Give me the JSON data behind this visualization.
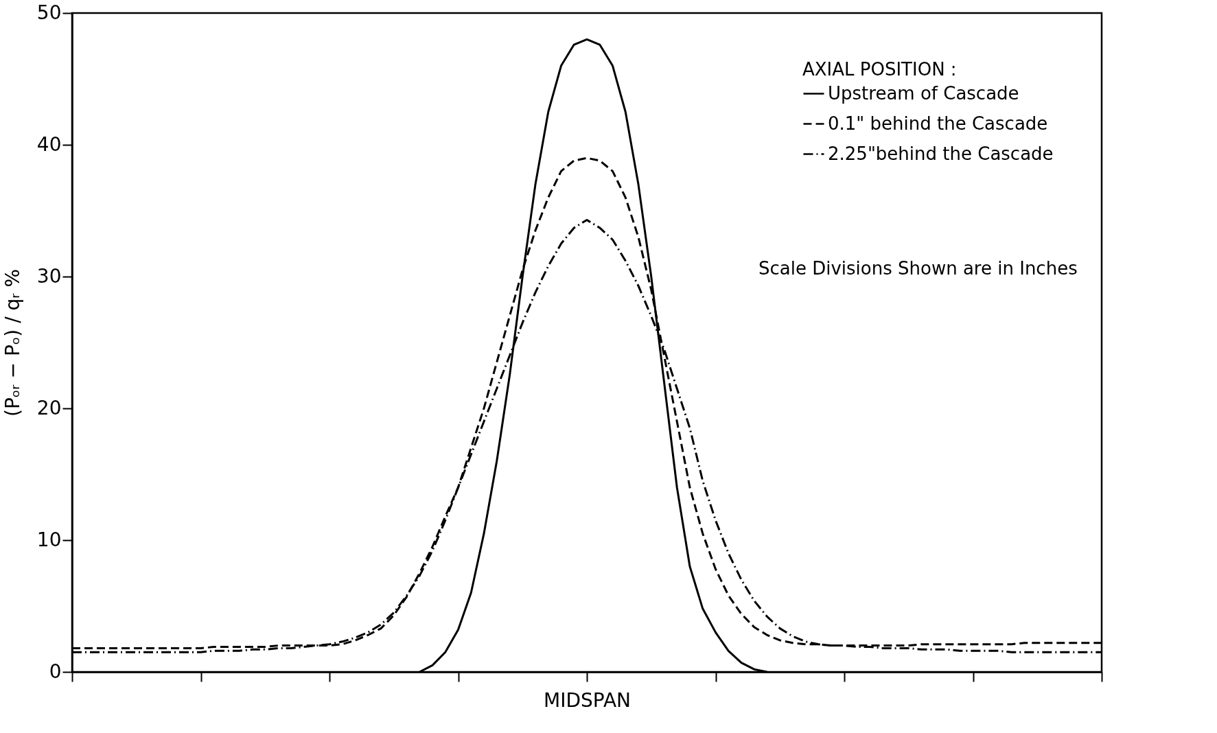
{
  "chart_data": {
    "type": "line",
    "ylabel": "(Pₒᵣ − Pₒ) / qᵣ  %",
    "legend_title": "AXIAL POSITION :",
    "legend": "top right",
    "grid": false,
    "categories": [
      null,
      null,
      null,
      null,
      null,
      null,
      null,
      null,
      null,
      null,
      null,
      null,
      null,
      null,
      null,
      null,
      null,
      null,
      null,
      null,
      null,
      null,
      null,
      null,
      null,
      null,
      null,
      null,
      null,
      null,
      null,
      null,
      null,
      null,
      null,
      null,
      null,
      null,
      null,
      null,
      "MIDSPAN",
      null,
      null,
      null,
      null,
      null,
      null,
      null,
      null,
      null,
      null,
      null,
      null,
      null,
      null,
      null,
      null,
      null,
      null,
      null,
      null,
      null,
      null,
      null,
      null,
      null,
      null,
      null,
      null,
      null,
      null,
      null,
      null,
      null,
      null,
      null,
      null,
      null,
      null,
      null,
      null
    ],
    "ylim": [
      0,
      50
    ],
    "yticks": [
      0,
      10,
      20,
      30,
      40,
      50
    ],
    "annotations": [
      "Scale Divisions Shown are in Inches"
    ],
    "series": [
      {
        "name": "Upstream of Cascade",
        "color": "#000000",
        "line_style": "solid",
        "values": [
          null,
          null,
          null,
          null,
          null,
          null,
          null,
          null,
          null,
          null,
          null,
          null,
          null,
          null,
          null,
          null,
          null,
          null,
          null,
          null,
          null,
          null,
          null,
          null,
          null,
          null,
          null,
          0,
          0.5,
          1.5,
          3.2,
          6,
          10.5,
          16,
          22.5,
          30,
          37,
          42.5,
          46,
          47.6,
          48,
          47.6,
          46,
          42.5,
          37,
          30,
          22,
          14,
          8,
          4.8,
          3,
          1.6,
          0.7,
          0.2,
          0,
          null,
          null,
          null,
          null,
          null,
          null,
          null,
          null,
          null,
          null,
          null,
          null,
          null,
          null,
          null,
          null,
          null,
          null,
          null,
          null,
          null,
          null,
          null,
          null,
          null,
          null
        ]
      },
      {
        "name": "0.1\" behind the Cascade",
        "color": "#000000",
        "line_style": "dashed",
        "values": [
          1.8,
          1.8,
          1.8,
          1.8,
          1.8,
          1.8,
          1.8,
          1.8,
          1.8,
          1.8,
          1.8,
          1.9,
          1.9,
          1.9,
          1.9,
          1.9,
          2,
          2,
          2,
          2,
          2,
          2.1,
          2.4,
          2.8,
          3.3,
          4.3,
          5.7,
          7.5,
          9.5,
          11.8,
          14,
          17,
          20,
          23.5,
          27,
          30.5,
          33.5,
          36,
          38,
          38.8,
          39,
          38.8,
          38,
          36,
          33,
          29,
          24,
          19,
          14,
          10.5,
          7.8,
          5.8,
          4.4,
          3.4,
          2.8,
          2.4,
          2.2,
          2.1,
          2.1,
          2,
          2,
          2,
          2,
          2,
          2,
          2,
          2.1,
          2.1,
          2.1,
          2.1,
          2.1,
          2.1,
          2.1,
          2.1,
          2.2,
          2.2,
          2.2,
          2.2,
          2.2,
          2.2,
          2.2
        ]
      },
      {
        "name": "2.25\"behind the Cascade",
        "color": "#000000",
        "line_style": "dashdot",
        "values": [
          1.5,
          1.5,
          1.5,
          1.5,
          1.5,
          1.5,
          1.5,
          1.5,
          1.5,
          1.5,
          1.5,
          1.6,
          1.6,
          1.6,
          1.7,
          1.7,
          1.8,
          1.8,
          1.9,
          2,
          2.1,
          2.3,
          2.6,
          3,
          3.6,
          4.5,
          5.8,
          7.3,
          9.2,
          11.5,
          14,
          16.5,
          19,
          21.5,
          24,
          26.5,
          28.8,
          30.8,
          32.5,
          33.7,
          34.3,
          33.7,
          32.8,
          31.2,
          29.3,
          27,
          24.5,
          21.5,
          18.5,
          14.5,
          11.5,
          9,
          7,
          5.4,
          4.2,
          3.3,
          2.7,
          2.3,
          2.1,
          2,
          2,
          1.9,
          1.9,
          1.8,
          1.8,
          1.8,
          1.7,
          1.7,
          1.7,
          1.6,
          1.6,
          1.6,
          1.6,
          1.5,
          1.5,
          1.5,
          1.5,
          1.5,
          1.5,
          1.5,
          1.5
        ]
      }
    ]
  }
}
